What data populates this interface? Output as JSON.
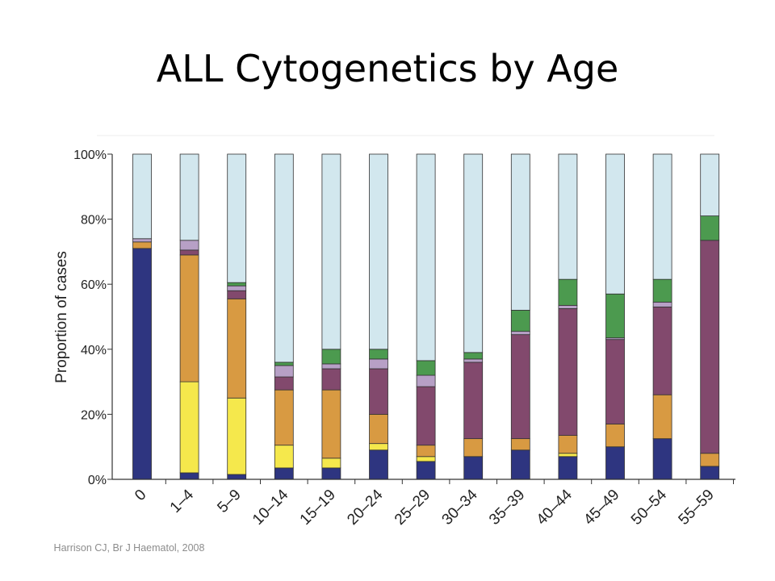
{
  "slide": {
    "title": "ALL Cytogenetics by Age",
    "citation": "Harrison CJ, Br J Haematol, 2008"
  },
  "chart_data": {
    "type": "bar",
    "stacked": true,
    "title": "",
    "xlabel": "",
    "ylabel": "Proportion of cases",
    "ylim": [
      0,
      100
    ],
    "yticks": [
      "0%",
      "20%",
      "40%",
      "60%",
      "80%",
      "100%"
    ],
    "categories": [
      "0",
      "1–4",
      "5–9",
      "10–14",
      "15–19",
      "20–24",
      "25–29",
      "30–34",
      "35–39",
      "40–44",
      "45–49",
      "50–54",
      "55–59"
    ],
    "series": [
      {
        "color": "#2e3580",
        "values": [
          71,
          2,
          1.5,
          3.5,
          3.5,
          9,
          5.5,
          7,
          9,
          7,
          10,
          12.5,
          4
        ]
      },
      {
        "color": "#f5e84c",
        "values": [
          0,
          28,
          23.5,
          7,
          3,
          2,
          1.5,
          0,
          0,
          1,
          0,
          0,
          0
        ]
      },
      {
        "color": "#d89a42",
        "values": [
          2,
          39,
          30.5,
          17,
          21,
          9,
          3.5,
          5.5,
          3.5,
          5.5,
          7,
          13.5,
          4
        ]
      },
      {
        "color": "#82496d",
        "values": [
          0,
          1.5,
          2.5,
          4,
          6.5,
          14,
          18,
          23.5,
          32,
          39,
          26,
          27,
          65.5
        ]
      },
      {
        "color": "#b7a0c6",
        "values": [
          1,
          3,
          1.5,
          3.5,
          1.5,
          3,
          3.5,
          1,
          1,
          1,
          0.5,
          1.5,
          0
        ]
      },
      {
        "color": "#4c9a4f",
        "values": [
          0,
          0,
          1,
          1,
          4.5,
          3,
          4.5,
          2,
          6.5,
          8,
          13.5,
          7,
          7.5
        ]
      },
      {
        "color": "#d2e7ee",
        "values": [
          26,
          26.5,
          39.5,
          64,
          60,
          60,
          63.5,
          61,
          48,
          38.5,
          43,
          38.5,
          19
        ]
      }
    ]
  }
}
